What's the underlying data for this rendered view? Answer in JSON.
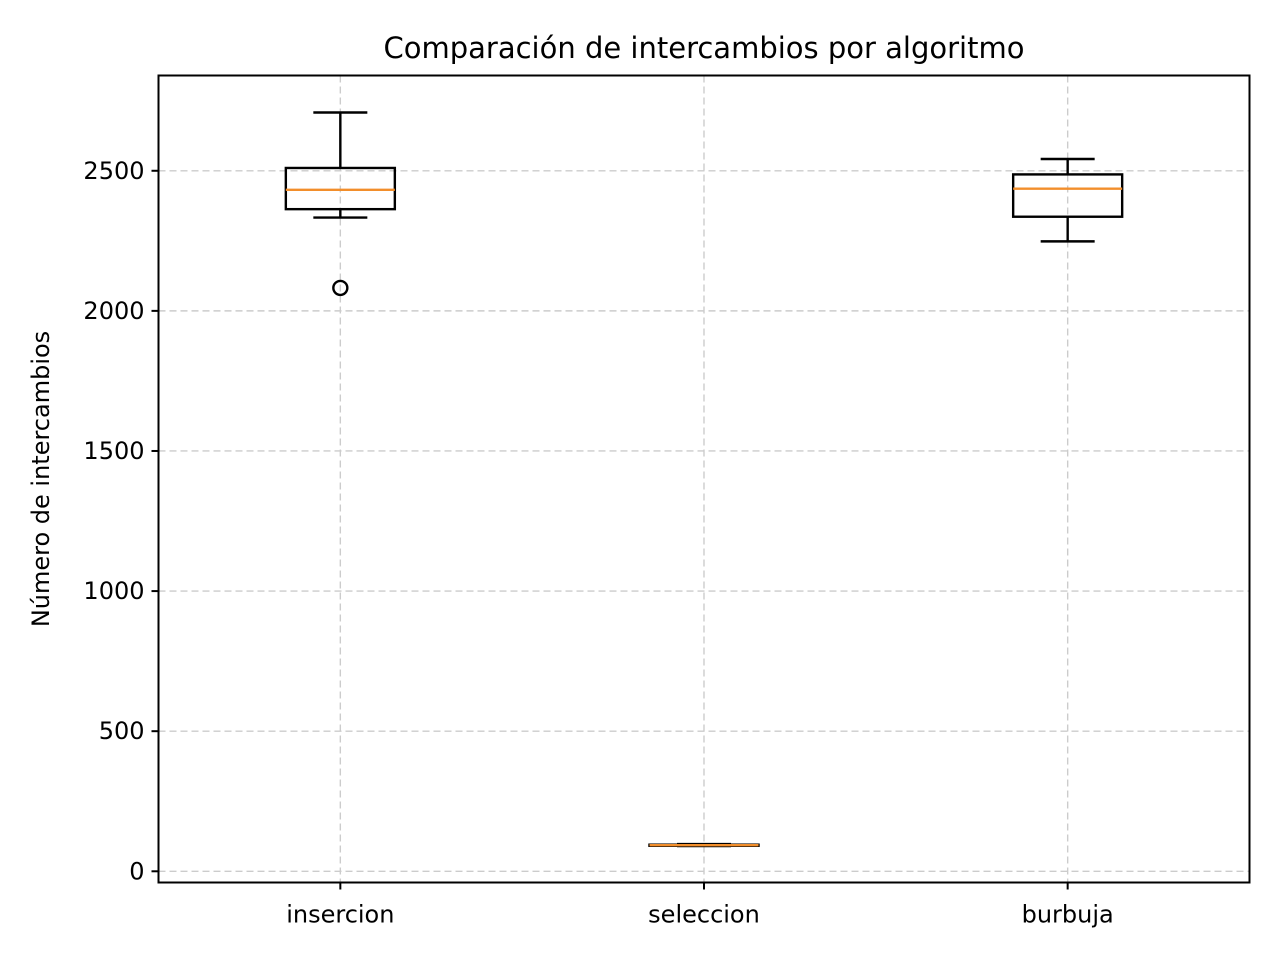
{
  "chart_data": {
    "type": "box",
    "title": "Comparación de intercambios por algoritmo",
    "xlabel": "",
    "ylabel": "Número de intercambios",
    "ylim": [
      -40,
      2840
    ],
    "yticks": [
      0,
      500,
      1000,
      1500,
      2000,
      2500
    ],
    "grid": true,
    "categories": [
      "insercion",
      "seleccion",
      "burbuja"
    ],
    "boxes": [
      {
        "category": "insercion",
        "whisker_low": 2333,
        "q1": 2363,
        "median": 2432,
        "q3": 2510,
        "whisker_high": 2708,
        "outliers": [
          2082
        ]
      },
      {
        "category": "seleccion",
        "whisker_low": 90,
        "q1": 91,
        "median": 93,
        "q3": 95,
        "whisker_high": 97,
        "outliers": []
      },
      {
        "category": "burbuja",
        "whisker_low": 2248,
        "q1": 2336,
        "median": 2436,
        "q3": 2487,
        "whisker_high": 2542,
        "outliers": []
      }
    ]
  },
  "colors": {
    "median": "#f28e2b",
    "box": "#000000",
    "grid": "#cccccc"
  }
}
